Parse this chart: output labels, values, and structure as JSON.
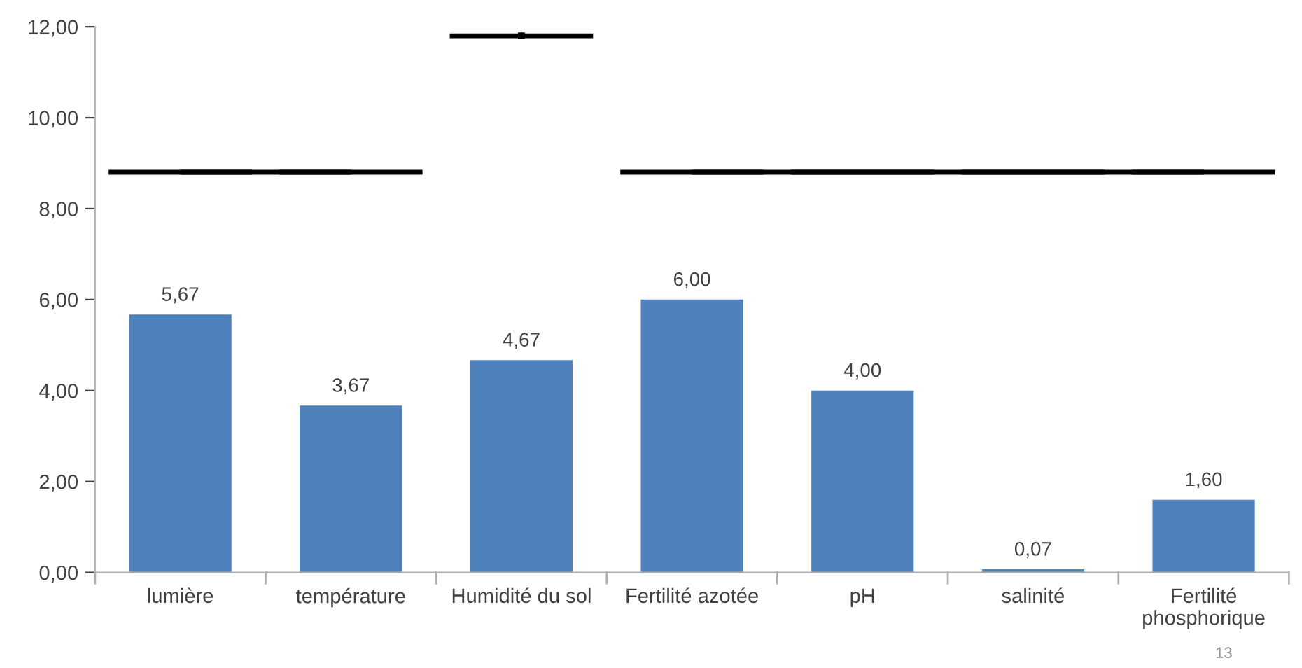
{
  "chart_data": {
    "type": "bar",
    "categories": [
      "lumière",
      "température",
      "Humidité du sol",
      "Fertilité azotée",
      "pH",
      "salinité",
      "Fertilité\nphosphorique"
    ],
    "series": [
      {
        "color": "#4f81bd",
        "values": [
          5.67,
          3.67,
          4.67,
          6.0,
          4.0,
          0.07,
          1.6
        ],
        "value_labels": [
          "5,67",
          "3,67",
          "4,67",
          "6,00",
          "4,00",
          "0,07",
          "1,60"
        ]
      },
      {
        "type": "line",
        "color": "#000000",
        "values": [
          8.8,
          8.8,
          null,
          null,
          null,
          null,
          null
        ]
      },
      {
        "type": "line",
        "color": "#000000",
        "marker": "square",
        "values": [
          null,
          null,
          11.8,
          null,
          null,
          null,
          null
        ]
      },
      {
        "type": "line",
        "color": "#000000",
        "values": [
          null,
          null,
          null,
          8.8,
          8.8,
          8.8,
          8.8
        ]
      }
    ],
    "ylim": [
      0,
      12
    ],
    "yticks": [
      {
        "value": 0,
        "label": "0,00"
      },
      {
        "value": 2,
        "label": "2,00"
      },
      {
        "value": 4,
        "label": "4,00"
      },
      {
        "value": 6,
        "label": "6,00"
      },
      {
        "value": 8,
        "label": "8,00"
      },
      {
        "value": 10,
        "label": "10,00"
      },
      {
        "value": 12,
        "label": "12,00"
      }
    ],
    "grid": false,
    "annotations": [
      "13"
    ]
  }
}
